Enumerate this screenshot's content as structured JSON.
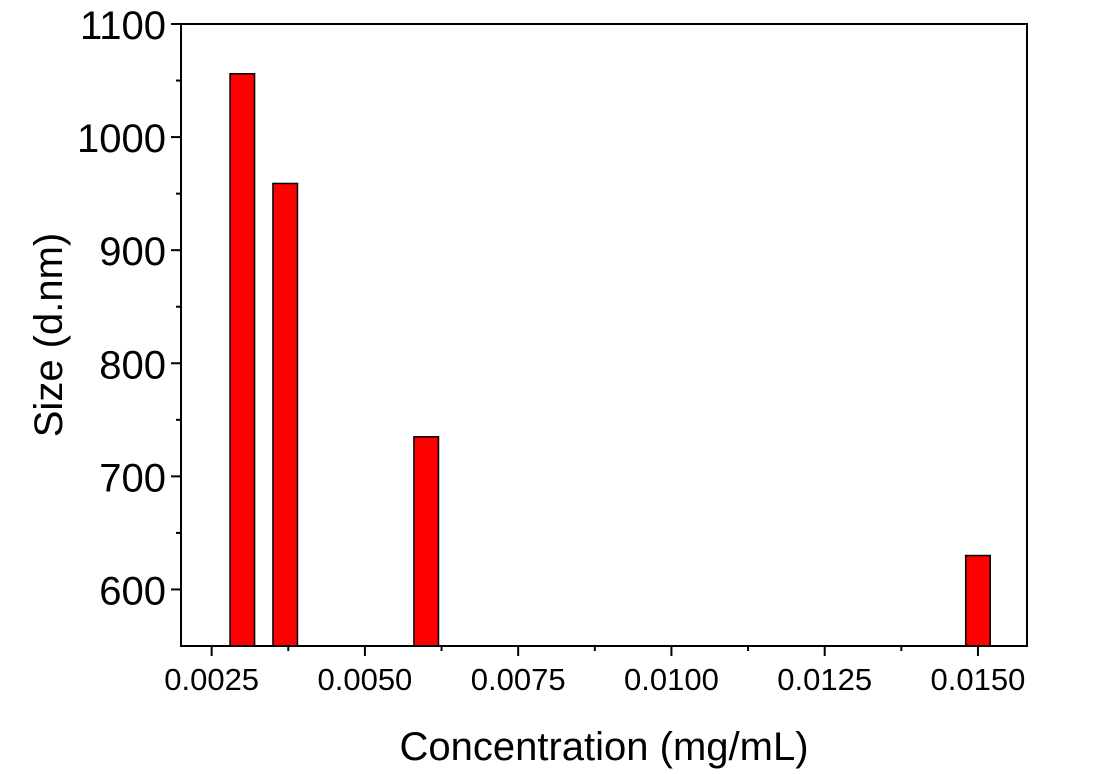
{
  "chart_data": {
    "type": "bar",
    "title": "",
    "xlabel": "Concentration (mg/mL)",
    "ylabel": "Size (d.nm)",
    "xlim": [
      0.002,
      0.0158
    ],
    "ylim": [
      550,
      1100
    ],
    "x_ticks": [
      "0.0025",
      "0.0050",
      "0.0075",
      "0.0100",
      "0.0125",
      "0.0150"
    ],
    "x_tick_values": [
      0.0025,
      0.005,
      0.0075,
      0.01,
      0.0125,
      0.015
    ],
    "y_ticks": [
      "600",
      "700",
      "800",
      "900",
      "1000",
      "1100"
    ],
    "y_tick_values": [
      600,
      700,
      800,
      900,
      1000,
      1100
    ],
    "x": [
      0.003,
      0.0037,
      0.006,
      0.015
    ],
    "values": [
      1056,
      959,
      735,
      630
    ],
    "bar_width": 0.0004,
    "bar_color": "#ff0000",
    "grid": false,
    "legend": "none"
  }
}
